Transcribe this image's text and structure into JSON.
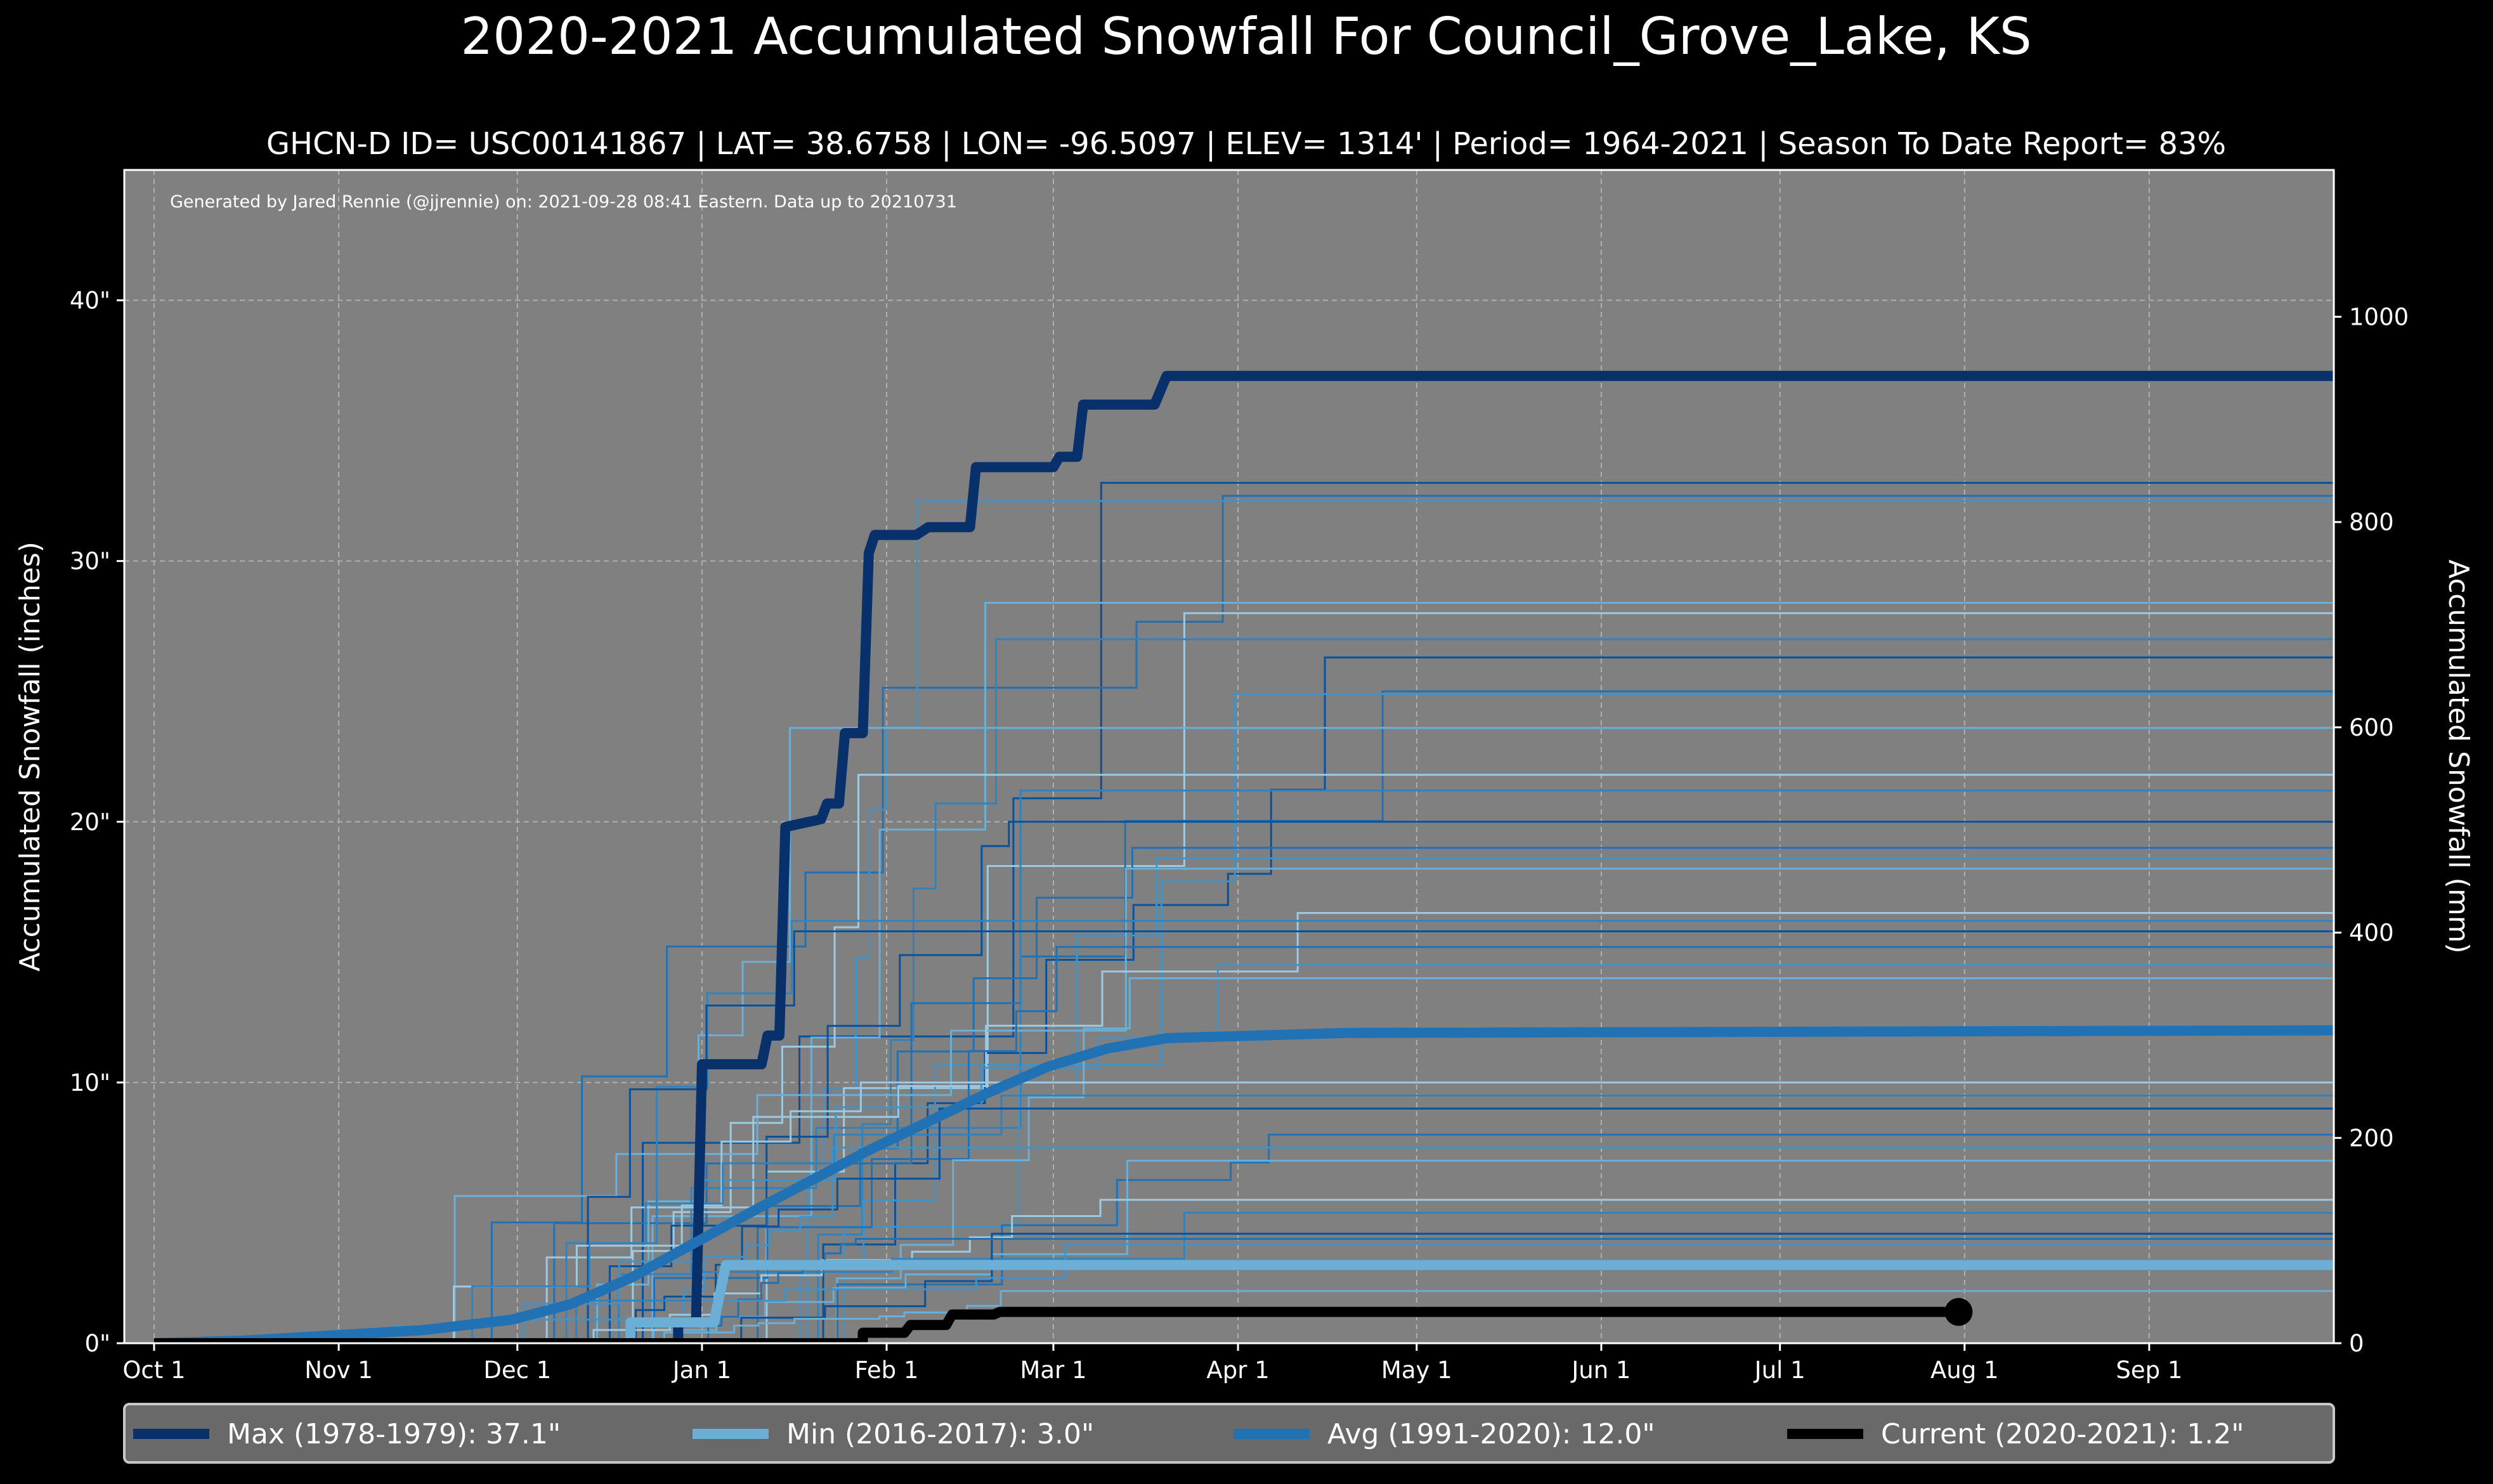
{
  "chart_data": {
    "type": "line",
    "title": "2020-2021 Accumulated Snowfall For Council_Grove_Lake, KS",
    "subtitle": "GHCN-D ID= USC00141867 | LAT= 38.6758 | LON= -96.5097 | ELEV= 1314' | Period= 1964-2021 | Season To Date Report= 83%",
    "annotation": "Generated by Jared Rennie (@jjrennie) on: 2021-09-28 08:41 Eastern. Data up to 20210731",
    "ylabel": "Accumulated Snowfall (inches)",
    "ylabel_right": "Accumulated Snowfall (mm)",
    "x_unit": "days since Oct 1",
    "xlim": [
      -5,
      366
    ],
    "ylim": [
      0,
      45
    ],
    "grid": true,
    "legend_placement": "bottom",
    "xticks": [
      {
        "day": 0,
        "label": "Oct 1"
      },
      {
        "day": 31,
        "label": "Nov 1"
      },
      {
        "day": 61,
        "label": "Dec 1"
      },
      {
        "day": 92,
        "label": "Jan 1"
      },
      {
        "day": 123,
        "label": "Feb 1"
      },
      {
        "day": 151,
        "label": "Mar 1"
      },
      {
        "day": 182,
        "label": "Apr 1"
      },
      {
        "day": 212,
        "label": "May 1"
      },
      {
        "day": 243,
        "label": "Jun 1"
      },
      {
        "day": 273,
        "label": "Jul 1"
      },
      {
        "day": 304,
        "label": "Aug 1"
      },
      {
        "day": 335,
        "label": "Sep 1"
      }
    ],
    "yticks": [
      {
        "value": 0,
        "label": "0\""
      },
      {
        "value": 10,
        "label": "10\""
      },
      {
        "value": 20,
        "label": "20\""
      },
      {
        "value": 30,
        "label": "30\""
      },
      {
        "value": 40,
        "label": "40\""
      }
    ],
    "yticks_right_mm": [
      0,
      200,
      400,
      600,
      800,
      1000
    ],
    "series": [
      {
        "name": "Max (1978-1979)",
        "legend": "Max (1978-1979):   37.1\"",
        "color": "#08306b",
        "width": 16,
        "points": [
          [
            30,
            0
          ],
          [
            88,
            0
          ],
          [
            88,
            0.8
          ],
          [
            91,
            0.8
          ],
          [
            92,
            10.7
          ],
          [
            102,
            10.7
          ],
          [
            103,
            11.8
          ],
          [
            105,
            11.8
          ],
          [
            106,
            19.8
          ],
          [
            112,
            20.1
          ],
          [
            113,
            20.7
          ],
          [
            115,
            20.7
          ],
          [
            116,
            23.4
          ],
          [
            119,
            23.4
          ],
          [
            120,
            30.3
          ],
          [
            121,
            31.0
          ],
          [
            128,
            31.0
          ],
          [
            130,
            31.3
          ],
          [
            137,
            31.3
          ],
          [
            138,
            33.6
          ],
          [
            151,
            33.6
          ],
          [
            152,
            34.0
          ],
          [
            155,
            34.0
          ],
          [
            156,
            36.0
          ],
          [
            168,
            36.0
          ],
          [
            170,
            37.1
          ],
          [
            366,
            37.1
          ]
        ]
      },
      {
        "name": "Min (2016-2017)",
        "legend": "Min (2016-2017):    3.0\"",
        "color": "#6baed6",
        "width": 16,
        "points": [
          [
            80,
            0
          ],
          [
            80,
            0.8
          ],
          [
            94,
            0.8
          ],
          [
            96,
            3.0
          ],
          [
            366,
            3.0
          ]
        ]
      },
      {
        "name": "Avg (1991-2020)",
        "legend": "Avg (1991-2020):   12.0\"",
        "color": "#2171b5",
        "width": 16,
        "points": [
          [
            0,
            0
          ],
          [
            15,
            0.1
          ],
          [
            30,
            0.3
          ],
          [
            45,
            0.5
          ],
          [
            60,
            0.9
          ],
          [
            70,
            1.5
          ],
          [
            80,
            2.5
          ],
          [
            92,
            4.0
          ],
          [
            100,
            5.0
          ],
          [
            110,
            6.2
          ],
          [
            120,
            7.4
          ],
          [
            130,
            8.5
          ],
          [
            140,
            9.6
          ],
          [
            150,
            10.6
          ],
          [
            160,
            11.3
          ],
          [
            170,
            11.7
          ],
          [
            185,
            11.8
          ],
          [
            200,
            11.9
          ],
          [
            366,
            12.0
          ]
        ]
      },
      {
        "name": "Current (2020-2021)",
        "legend": "Current (2020-2021):    1.2\"",
        "color": "#000000",
        "width": 16,
        "points": [
          [
            0,
            0
          ],
          [
            119,
            0
          ],
          [
            119,
            0.4
          ],
          [
            126,
            0.4
          ],
          [
            127,
            0.7
          ],
          [
            133,
            0.7
          ],
          [
            134,
            1.1
          ],
          [
            141,
            1.1
          ],
          [
            142,
            1.2
          ],
          [
            303,
            1.2
          ]
        ],
        "end_marker": true
      }
    ],
    "other_seasons_final": [
      33.0,
      32.5,
      32.3,
      28.4,
      28.0,
      27.0,
      26.3,
      25.0,
      24.9,
      23.6,
      21.8,
      21.2,
      20.0,
      19.0,
      18.6,
      18.2,
      16.5,
      16.2,
      15.8,
      15.2,
      14.5,
      14.0,
      10.0,
      9.5,
      9.0,
      8.0,
      7.5,
      7.0,
      5.5,
      5.0,
      4.2,
      4.0,
      3.8,
      2.0
    ]
  }
}
